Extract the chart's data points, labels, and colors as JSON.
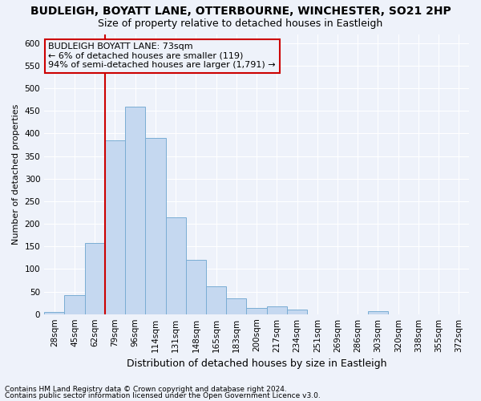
{
  "title": "BUDLEIGH, BOYATT LANE, OTTERBOURNE, WINCHESTER, SO21 2HP",
  "subtitle": "Size of property relative to detached houses in Eastleigh",
  "xlabel": "Distribution of detached houses by size in Eastleigh",
  "ylabel": "Number of detached properties",
  "footnote1": "Contains HM Land Registry data © Crown copyright and database right 2024.",
  "footnote2": "Contains public sector information licensed under the Open Government Licence v3.0.",
  "annotation_title": "BUDLEIGH BOYATT LANE: 73sqm",
  "annotation_line1": "← 6% of detached houses are smaller (119)",
  "annotation_line2": "94% of semi-detached houses are larger (1,791) →",
  "bar_color": "#c5d8f0",
  "bar_edge_color": "#7aadd4",
  "marker_color": "#cc0000",
  "categories": [
    "28sqm",
    "45sqm",
    "62sqm",
    "79sqm",
    "96sqm",
    "114sqm",
    "131sqm",
    "148sqm",
    "165sqm",
    "183sqm",
    "200sqm",
    "217sqm",
    "234sqm",
    "251sqm",
    "269sqm",
    "286sqm",
    "303sqm",
    "320sqm",
    "338sqm",
    "355sqm",
    "372sqm"
  ],
  "values": [
    5,
    42,
    158,
    385,
    460,
    390,
    215,
    120,
    62,
    35,
    14,
    17,
    10,
    0,
    0,
    0,
    6,
    0,
    0,
    0,
    0
  ],
  "ylim": [
    0,
    620
  ],
  "yticks": [
    0,
    50,
    100,
    150,
    200,
    250,
    300,
    350,
    400,
    450,
    500,
    550,
    600
  ],
  "bg_color": "#eef2fa",
  "grid_color": "#ffffff",
  "title_fontsize": 10,
  "subtitle_fontsize": 9,
  "xlabel_fontsize": 9,
  "ylabel_fontsize": 8,
  "tick_fontsize": 7.5,
  "footnote_fontsize": 6.5,
  "annot_fontsize": 8
}
